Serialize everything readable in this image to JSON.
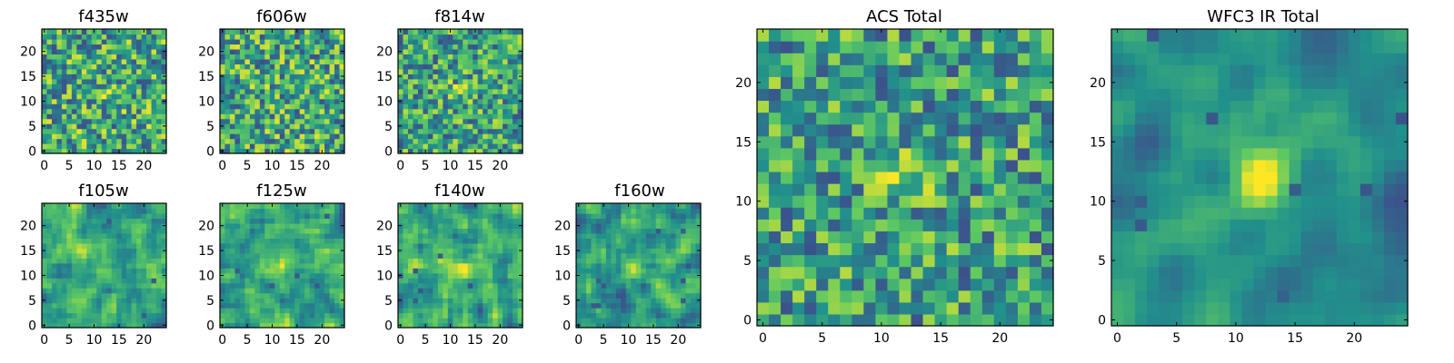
{
  "figure": {
    "colormap": "viridis",
    "colormap_stops": [
      "#440154",
      "#3b528b",
      "#21918c",
      "#5ec962",
      "#fde725"
    ]
  },
  "chart_data": [
    {
      "type": "heatmap",
      "title": "f435w",
      "grid": [
        25,
        25
      ],
      "xlim": [
        0,
        24
      ],
      "ylim": [
        0,
        24
      ],
      "xticks": [
        0,
        5,
        10,
        15,
        20
      ],
      "yticks": [
        0,
        5,
        10,
        15,
        20
      ],
      "seed": 11,
      "smooth": 0,
      "blob_strength": 0.1,
      "dark_spots": 14
    },
    {
      "type": "heatmap",
      "title": "f606w",
      "grid": [
        25,
        25
      ],
      "xlim": [
        0,
        24
      ],
      "ylim": [
        0,
        24
      ],
      "xticks": [
        0,
        5,
        10,
        15,
        20
      ],
      "yticks": [
        0,
        5,
        10,
        15,
        20
      ],
      "seed": 23,
      "smooth": 0,
      "blob_strength": 0.1,
      "dark_spots": 12
    },
    {
      "type": "heatmap",
      "title": "f814w",
      "grid": [
        25,
        25
      ],
      "xlim": [
        0,
        24
      ],
      "ylim": [
        0,
        24
      ],
      "xticks": [
        0,
        5,
        10,
        15,
        20
      ],
      "yticks": [
        0,
        5,
        10,
        15,
        20
      ],
      "seed": 37,
      "smooth": 0,
      "blob_strength": 0.25,
      "dark_spots": 10
    },
    {
      "type": "heatmap",
      "title": "f105w",
      "grid": [
        25,
        25
      ],
      "xlim": [
        0,
        24
      ],
      "ylim": [
        0,
        24
      ],
      "xticks": [
        0,
        5,
        10,
        15,
        20
      ],
      "yticks": [
        0,
        5,
        10,
        15,
        20
      ],
      "seed": 41,
      "smooth": 1,
      "blob_strength": 0.2,
      "dark_spots": 4
    },
    {
      "type": "heatmap",
      "title": "f125w",
      "grid": [
        25,
        25
      ],
      "xlim": [
        0,
        24
      ],
      "ylim": [
        0,
        24
      ],
      "xticks": [
        0,
        5,
        10,
        15,
        20
      ],
      "yticks": [
        0,
        5,
        10,
        15,
        20
      ],
      "seed": 53,
      "smooth": 1,
      "blob_strength": 0.2,
      "dark_spots": 5
    },
    {
      "type": "heatmap",
      "title": "f140w",
      "grid": [
        25,
        25
      ],
      "xlim": [
        0,
        24
      ],
      "ylim": [
        0,
        24
      ],
      "xticks": [
        0,
        5,
        10,
        15,
        20
      ],
      "yticks": [
        0,
        5,
        10,
        15,
        20
      ],
      "seed": 67,
      "smooth": 1,
      "blob_strength": 0.25,
      "dark_spots": 6
    },
    {
      "type": "heatmap",
      "title": "f160w",
      "grid": [
        25,
        25
      ],
      "xlim": [
        0,
        24
      ],
      "ylim": [
        0,
        24
      ],
      "xticks": [
        0,
        5,
        10,
        15,
        20
      ],
      "yticks": [
        0,
        5,
        10,
        15,
        20
      ],
      "seed": 79,
      "smooth": 1,
      "blob_strength": 0.4,
      "dark_spots": 8
    },
    {
      "type": "heatmap",
      "title": "ACS Total",
      "grid": [
        25,
        25
      ],
      "xlim": [
        0,
        24
      ],
      "ylim": [
        0,
        24
      ],
      "xticks": [
        0,
        5,
        10,
        15,
        20
      ],
      "yticks": [
        0,
        5,
        10,
        15,
        20
      ],
      "seed": 97,
      "smooth": 0,
      "blob_strength": 0.3,
      "dark_spots": 10
    },
    {
      "type": "heatmap",
      "title": "WFC3 IR Total",
      "grid": [
        25,
        25
      ],
      "xlim": [
        0,
        24
      ],
      "ylim": [
        0,
        24
      ],
      "xticks": [
        0,
        5,
        10,
        15,
        20
      ],
      "yticks": [
        0,
        5,
        10,
        15,
        20
      ],
      "seed": 113,
      "smooth": 2,
      "blob_strength": 0.9,
      "dark_spots": 9
    }
  ]
}
